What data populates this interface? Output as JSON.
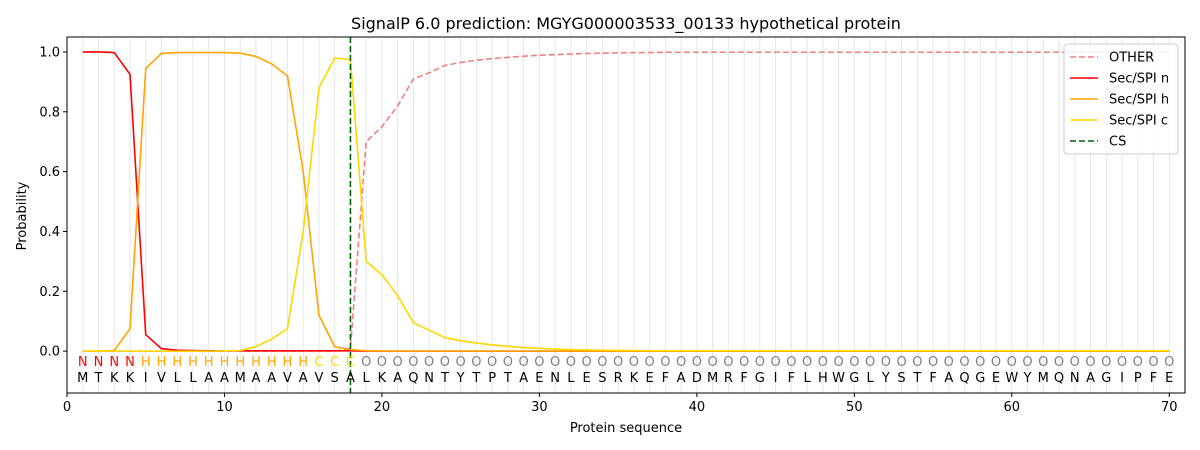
{
  "chart_data": {
    "type": "line",
    "title": "SignalP 6.0 prediction: MGYG000003533_00133 hypothetical protein",
    "xlabel": "Protein sequence",
    "ylabel": "Probability",
    "xlim": [
      0,
      71
    ],
    "ylim": [
      -0.14,
      1.05
    ],
    "x_ticks": [
      0,
      10,
      20,
      30,
      40,
      50,
      60,
      70
    ],
    "y_ticks": [
      0.0,
      0.2,
      0.4,
      0.6,
      0.8,
      1.0
    ],
    "x_tick_labels": [
      "0",
      "10",
      "20",
      "30",
      "40",
      "50",
      "60",
      "70"
    ],
    "y_tick_labels": [
      "0.0",
      "0.2",
      "0.4",
      "0.6",
      "0.8",
      "1.0"
    ],
    "grid": "vertical lines at each residue",
    "legend_position": "top-right",
    "sequence": [
      "M",
      "T",
      "K",
      "K",
      "I",
      "V",
      "L",
      "L",
      "A",
      "A",
      "M",
      "A",
      "A",
      "V",
      "A",
      "V",
      "S",
      "A",
      "L",
      "K",
      "A",
      "Q",
      "N",
      "T",
      "Y",
      "T",
      "P",
      "T",
      "A",
      "E",
      "N",
      "L",
      "E",
      "S",
      "R",
      "K",
      "E",
      "F",
      "A",
      "D",
      "M",
      "R",
      "F",
      "G",
      "I",
      "F",
      "L",
      "H",
      "W",
      "G",
      "L",
      "Y",
      "S",
      "T",
      "F",
      "A",
      "Q",
      "G",
      "E",
      "W",
      "Y",
      "M",
      "Q",
      "N",
      "A",
      "G",
      "I",
      "P",
      "F",
      "E"
    ],
    "region_labels": [
      "N",
      "N",
      "N",
      "N",
      "H",
      "H",
      "H",
      "H",
      "H",
      "H",
      "H",
      "H",
      "H",
      "H",
      "H",
      "C",
      "C",
      "C",
      "O",
      "O",
      "O",
      "O",
      "O",
      "O",
      "O",
      "O",
      "O",
      "O",
      "O",
      "O",
      "O",
      "O",
      "O",
      "O",
      "O",
      "O",
      "O",
      "O",
      "O",
      "O",
      "O",
      "O",
      "O",
      "O",
      "O",
      "O",
      "O",
      "O",
      "O",
      "O",
      "O",
      "O",
      "O",
      "O",
      "O",
      "O",
      "O",
      "O",
      "O",
      "O",
      "O",
      "O",
      "O",
      "O",
      "O",
      "O",
      "O",
      "O",
      "O",
      "O"
    ],
    "region_colors": {
      "N": "#ff0000",
      "H": "#ffa500",
      "C": "#ffd700",
      "O": "#808080"
    },
    "cleavage_site": 18,
    "series": [
      {
        "name": "OTHER",
        "color": "#f08080",
        "dash": "dashed",
        "values": [
          0,
          0,
          0,
          0,
          0,
          0,
          0,
          0,
          0,
          0,
          0,
          0,
          0,
          0,
          0,
          0,
          0,
          0.01,
          0.7,
          0.75,
          0.82,
          0.91,
          0.93,
          0.955,
          0.965,
          0.972,
          0.978,
          0.982,
          0.986,
          0.989,
          0.991,
          0.993,
          0.995,
          0.996,
          0.997,
          0.998,
          0.998,
          0.999,
          0.999,
          0.999,
          0.999,
          0.999,
          0.999,
          0.999,
          0.999,
          0.999,
          0.999,
          0.999,
          0.999,
          0.999,
          0.999,
          0.999,
          0.999,
          0.999,
          0.999,
          0.999,
          0.999,
          0.999,
          0.999,
          0.999,
          0.999,
          0.999,
          0.999,
          0.999,
          0.999,
          0.999,
          0.999,
          0.999,
          0.999,
          0.999
        ]
      },
      {
        "name": "Sec/SPI n",
        "color": "#ff0000",
        "dash": "solid",
        "values": [
          1.0,
          1.0,
          0.998,
          0.925,
          0.055,
          0.008,
          0.003,
          0.002,
          0.001,
          0.001,
          0.001,
          0.001,
          0.001,
          0.001,
          0.001,
          0.001,
          0.001,
          0.001,
          0,
          0,
          0,
          0,
          0,
          0,
          0,
          0,
          0,
          0,
          0,
          0,
          0,
          0,
          0,
          0,
          0,
          0,
          0,
          0,
          0,
          0,
          0,
          0,
          0,
          0,
          0,
          0,
          0,
          0,
          0,
          0,
          0,
          0,
          0,
          0,
          0,
          0,
          0,
          0,
          0,
          0,
          0,
          0,
          0,
          0,
          0,
          0,
          0,
          0,
          0,
          0
        ]
      },
      {
        "name": "Sec/SPI h",
        "color": "#ffa500",
        "dash": "solid",
        "values": [
          0,
          0,
          0.002,
          0.075,
          0.945,
          0.995,
          0.998,
          0.998,
          0.998,
          0.998,
          0.996,
          0.985,
          0.96,
          0.92,
          0.6,
          0.12,
          0.015,
          0.005,
          0.001,
          0,
          0,
          0,
          0,
          0,
          0,
          0,
          0,
          0,
          0,
          0,
          0,
          0,
          0,
          0,
          0,
          0,
          0,
          0,
          0,
          0,
          0,
          0,
          0,
          0,
          0,
          0,
          0,
          0,
          0,
          0,
          0,
          0,
          0,
          0,
          0,
          0,
          0,
          0,
          0,
          0,
          0,
          0,
          0,
          0,
          0,
          0,
          0,
          0,
          0,
          0
        ]
      },
      {
        "name": "Sec/SPI c",
        "color": "#ffd700",
        "dash": "solid",
        "values": [
          0,
          0,
          0,
          0,
          0,
          0,
          0,
          0,
          0,
          0.001,
          0.002,
          0.015,
          0.04,
          0.075,
          0.4,
          0.88,
          0.98,
          0.975,
          0.3,
          0.255,
          0.185,
          0.095,
          0.07,
          0.045,
          0.035,
          0.027,
          0.021,
          0.016,
          0.012,
          0.009,
          0.007,
          0.005,
          0.004,
          0.003,
          0.002,
          0.002,
          0.001,
          0.001,
          0.001,
          0.001,
          0.001,
          0.001,
          0.001,
          0.001,
          0.001,
          0.001,
          0.001,
          0.001,
          0.001,
          0.001,
          0.001,
          0.001,
          0.001,
          0.001,
          0.001,
          0.001,
          0.001,
          0.001,
          0.001,
          0.001,
          0.001,
          0.001,
          0.001,
          0.001,
          0.001,
          0.001,
          0.001,
          0.001,
          0.001,
          0.001
        ]
      },
      {
        "name": "CS",
        "color": "#006400",
        "dash": "dashed",
        "values": []
      }
    ]
  }
}
